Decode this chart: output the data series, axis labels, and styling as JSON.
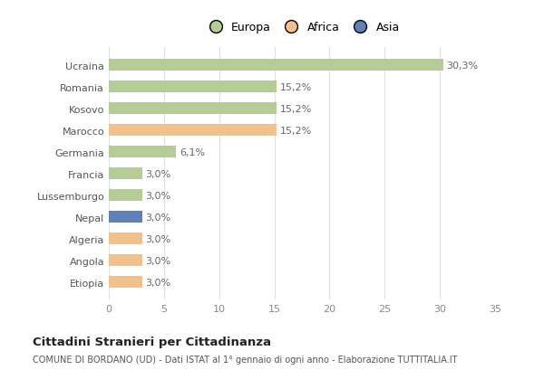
{
  "categories": [
    "Ucraina",
    "Romania",
    "Kosovo",
    "Marocco",
    "Germania",
    "Francia",
    "Lussemburgo",
    "Nepal",
    "Algeria",
    "Angola",
    "Etiopia"
  ],
  "values": [
    30.3,
    15.2,
    15.2,
    15.2,
    6.1,
    3.0,
    3.0,
    3.0,
    3.0,
    3.0,
    3.0
  ],
  "labels": [
    "30,3%",
    "15,2%",
    "15,2%",
    "15,2%",
    "6,1%",
    "3,0%",
    "3,0%",
    "3,0%",
    "3,0%",
    "3,0%",
    "3,0%"
  ],
  "continents": [
    "Europa",
    "Europa",
    "Europa",
    "Africa",
    "Europa",
    "Europa",
    "Europa",
    "Asia",
    "Africa",
    "Africa",
    "Africa"
  ],
  "colors": {
    "Europa": "#b5cc96",
    "Africa": "#f2c08a",
    "Asia": "#6080bb"
  },
  "legend_labels": [
    "Europa",
    "Africa",
    "Asia"
  ],
  "legend_colors": [
    "#b5cc96",
    "#f2c08a",
    "#6080bb"
  ],
  "xlim": [
    0,
    35
  ],
  "xticks": [
    0,
    5,
    10,
    15,
    20,
    25,
    30,
    35
  ],
  "title": "Cittadini Stranieri per Cittadinanza",
  "subtitle": "COMUNE DI BORDANO (UD) - Dati ISTAT al 1° gennaio di ogni anno - Elaborazione TUTTITALIA.IT",
  "background_color": "#ffffff",
  "bar_height": 0.55,
  "label_fontsize": 8,
  "tick_fontsize": 8,
  "legend_fontsize": 9
}
